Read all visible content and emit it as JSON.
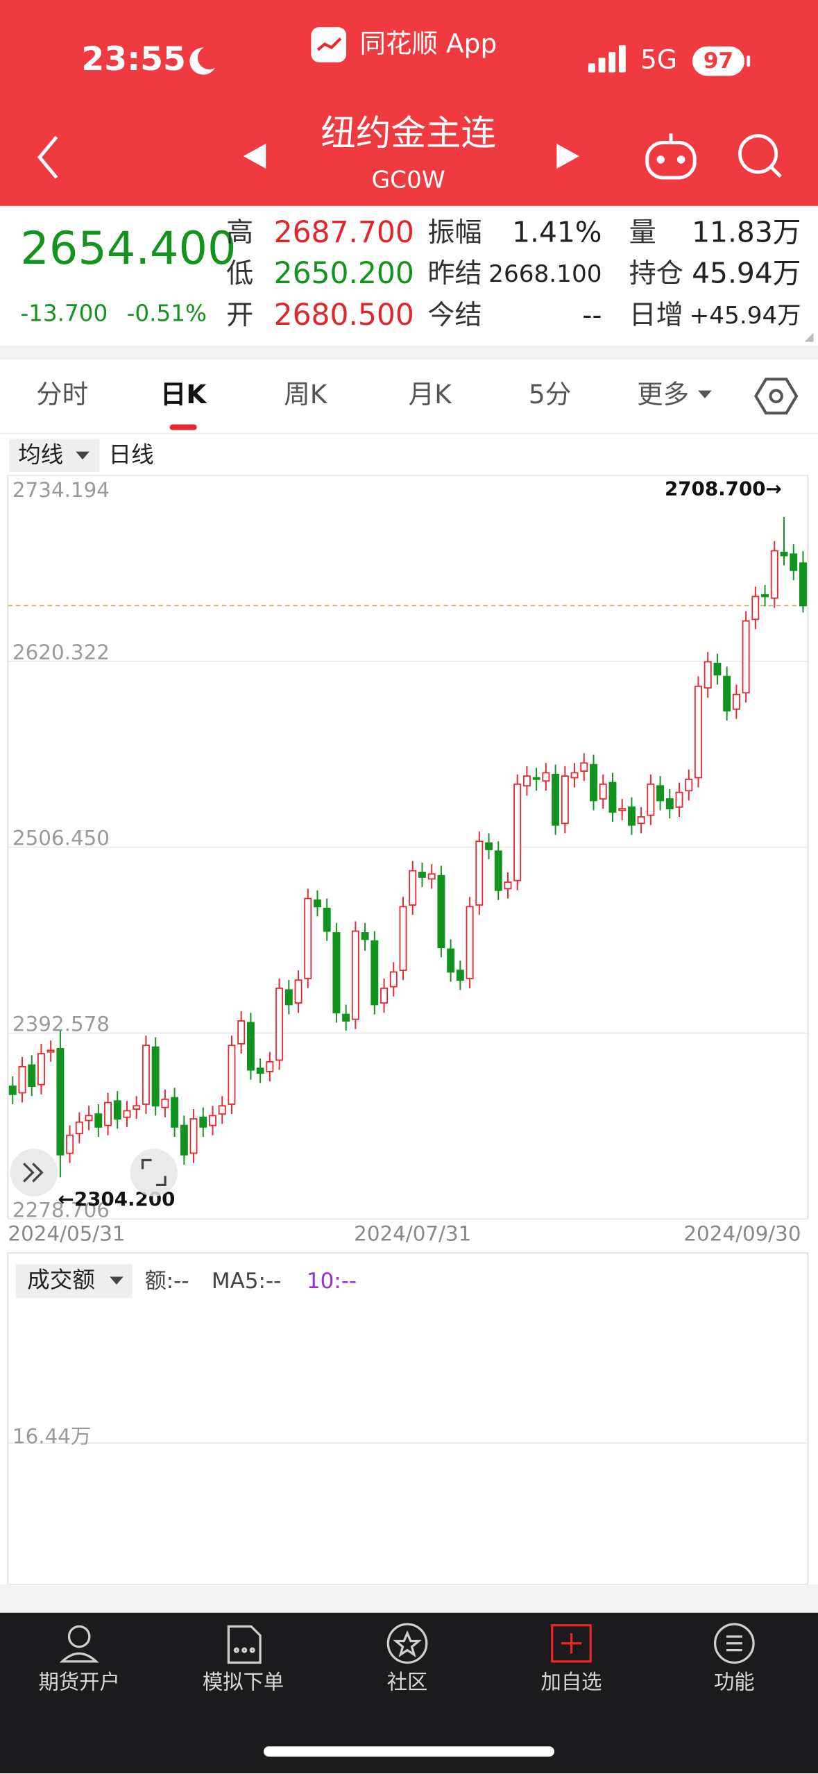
{
  "status_bar": {
    "time": "23:55",
    "app": "同花顺 App",
    "network": "5G",
    "battery": "97"
  },
  "nav": {
    "title": "纽约金主连",
    "code": "GC0W"
  },
  "quote": {
    "price": "2654.400",
    "change": "-13.700",
    "change_pct": "-0.51%",
    "stats": [
      {
        "label": "高",
        "value": "2687.700"
      },
      {
        "label": "低",
        "value": "2650.200"
      },
      {
        "label": "开",
        "value": "2680.500"
      },
      {
        "label": "振幅",
        "value": "1.41%"
      },
      {
        "label": "昨结",
        "value": "2668.100"
      },
      {
        "label": "今结",
        "value": "--"
      },
      {
        "label": "量",
        "value": "11.83万"
      },
      {
        "label": "持仓",
        "value": "45.94万"
      },
      {
        "label": "日增",
        "value": "+45.94万"
      }
    ]
  },
  "tabs": [
    "分时",
    "日K",
    "周K",
    "月K",
    "5分",
    "更多"
  ],
  "toolbar": {
    "indicator": "均线",
    "period": "日线"
  },
  "chart_data": {
    "type": "candlestick",
    "categories": [
      "2024/05/31",
      null,
      null,
      null,
      null,
      null,
      null,
      null,
      null,
      null,
      null,
      null,
      null,
      null,
      null,
      null,
      null,
      null,
      null,
      null,
      null,
      null,
      null,
      null,
      null,
      null,
      null,
      null,
      null,
      null,
      null,
      null,
      null,
      null,
      null,
      null,
      null,
      null,
      null,
      null,
      null,
      null,
      "2024/07/31",
      null,
      null,
      null,
      null,
      null,
      null,
      null,
      null,
      null,
      null,
      null,
      null,
      null,
      null,
      null,
      null,
      null,
      null,
      null,
      null,
      null,
      null,
      null,
      null,
      null,
      null,
      null,
      null,
      null,
      null,
      null,
      null,
      null,
      null,
      null,
      null,
      null,
      null,
      null,
      null,
      "2024/09/30"
    ],
    "open": [
      2360,
      2356,
      2373,
      2361,
      2381,
      2383,
      2319,
      2331,
      2339,
      2343,
      2336,
      2351,
      2341,
      2346,
      2349,
      2384,
      2347,
      2353,
      2336,
      2319,
      2341,
      2336,
      2343,
      2349,
      2386,
      2399,
      2371,
      2369,
      2376,
      2419,
      2411,
      2426,
      2474,
      2469,
      2454,
      2404,
      2401,
      2454,
      2449,
      2411,
      2421,
      2431,
      2471,
      2491,
      2487,
      2489,
      2444,
      2431,
      2426,
      2471,
      2509,
      2504,
      2481,
      2486,
      2544,
      2549,
      2547,
      2551,
      2521,
      2549,
      2553,
      2557,
      2536,
      2546,
      2529,
      2531,
      2521,
      2526,
      2544,
      2536,
      2531,
      2541,
      2549,
      2604,
      2619,
      2611,
      2591,
      2601,
      2646,
      2661,
      2659,
      2687,
      2686,
      2680.5
    ],
    "high": [
      2366,
      2378,
      2379,
      2386,
      2388,
      2394,
      2336,
      2344,
      2348,
      2349,
      2356,
      2357,
      2351,
      2354,
      2391,
      2390,
      2358,
      2359,
      2342,
      2346,
      2347,
      2348,
      2354,
      2391,
      2406,
      2405,
      2377,
      2381,
      2426,
      2425,
      2431,
      2481,
      2480,
      2475,
      2460,
      2410,
      2461,
      2460,
      2455,
      2426,
      2436,
      2476,
      2498,
      2497,
      2496,
      2495,
      2450,
      2437,
      2476,
      2516,
      2515,
      2510,
      2491,
      2551,
      2556,
      2555,
      2558,
      2557,
      2556,
      2558,
      2564,
      2563,
      2551,
      2552,
      2536,
      2537,
      2531,
      2551,
      2550,
      2542,
      2546,
      2554,
      2611,
      2626,
      2625,
      2617,
      2606,
      2651,
      2666,
      2667,
      2694,
      2708.7,
      2692,
      2687.7
    ],
    "low": [
      2349,
      2350,
      2354,
      2355,
      2375,
      2304.2,
      2313,
      2325,
      2333,
      2329,
      2330,
      2334,
      2335,
      2340,
      2343,
      2342,
      2341,
      2329,
      2312,
      2313,
      2329,
      2330,
      2337,
      2343,
      2380,
      2364,
      2362,
      2363,
      2370,
      2404,
      2405,
      2420,
      2464,
      2449,
      2399,
      2394,
      2395,
      2443,
      2404,
      2405,
      2415,
      2425,
      2465,
      2482,
      2481,
      2439,
      2424,
      2419,
      2420,
      2465,
      2499,
      2474,
      2475,
      2480,
      2538,
      2541,
      2541,
      2514,
      2515,
      2543,
      2547,
      2529,
      2530,
      2522,
      2523,
      2514,
      2515,
      2520,
      2529,
      2524,
      2525,
      2535,
      2543,
      2598,
      2606,
      2584,
      2585,
      2595,
      2640,
      2654,
      2653,
      2679,
      2670,
      2650.2
    ],
    "close": [
      2355,
      2372,
      2360,
      2380,
      2382,
      2318,
      2330,
      2338,
      2342,
      2335,
      2350,
      2340,
      2345,
      2348,
      2385,
      2348,
      2352,
      2335,
      2318,
      2340,
      2335,
      2342,
      2348,
      2385,
      2400,
      2370,
      2368,
      2375,
      2420,
      2410,
      2425,
      2475,
      2470,
      2455,
      2405,
      2400,
      2455,
      2450,
      2410,
      2420,
      2430,
      2470,
      2492,
      2488,
      2490,
      2445,
      2430,
      2425,
      2470,
      2510,
      2505,
      2480,
      2485,
      2545,
      2550,
      2548,
      2552,
      2520,
      2550,
      2552,
      2558,
      2535,
      2545,
      2528,
      2530,
      2520,
      2525,
      2545,
      2535,
      2530,
      2540,
      2548,
      2605,
      2620,
      2612,
      2590,
      2600,
      2645,
      2660,
      2660,
      2688,
      2685,
      2676,
      2654.4
    ],
    "ylim": [
      2278.706,
      2734.194
    ],
    "yticks": [
      2278.706,
      2392.578,
      {
        "value": 2506.45,
        "label": "2506.450"
      },
      2620.322,
      2734.194
    ],
    "grid": true,
    "up_color": "#e8262d",
    "down_color": "#12921e",
    "high_label": "2708.700→",
    "low_label": "←2304.200"
  },
  "volume_panel": {
    "indicator": "成交额",
    "amount": "额:--",
    "ma5": "MA5:--",
    "ma10": "10:--",
    "tick": "16.44万"
  },
  "bottom_nav": [
    "期货开户",
    "模拟下单",
    "社区",
    "加自选",
    "功能"
  ]
}
